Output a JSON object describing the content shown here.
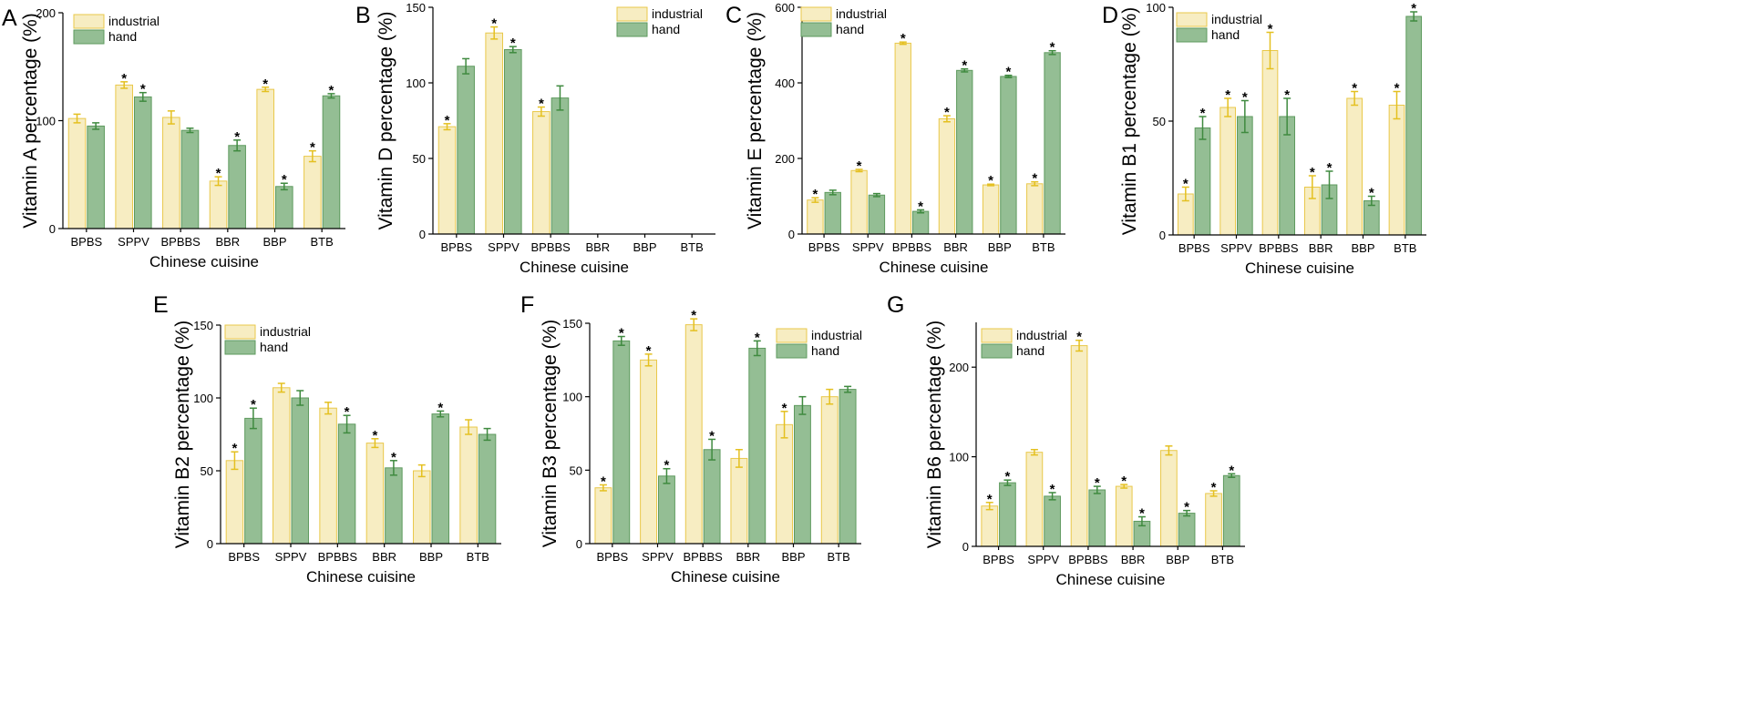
{
  "colors": {
    "industrial_fill": "#F7EDC2",
    "industrial_stroke": "#E9C84A",
    "industrial_err": "#E4C020",
    "hand_fill": "#94BE94",
    "hand_stroke": "#5E9A5E",
    "hand_err": "#3F8A3F"
  },
  "chart_data": [
    {
      "panel": "A",
      "type": "bar",
      "ylabel": "Vitamin A percentage (%)",
      "xlabel": "Chinese cuisine",
      "ylim": [
        0,
        200
      ],
      "yticks": [
        0,
        100,
        200
      ],
      "categories": [
        "BPBS",
        "SPPV",
        "BPBBS",
        "BBR",
        "BBP",
        "BTB"
      ],
      "legend": [
        "industrial",
        "hand"
      ],
      "legend_position": "top-left",
      "series": [
        {
          "name": "industrial",
          "values": [
            102,
            133,
            103,
            44,
            129,
            67
          ],
          "errors": [
            4,
            3,
            6,
            4,
            2,
            5
          ],
          "sig": [
            false,
            true,
            false,
            true,
            true,
            true
          ]
        },
        {
          "name": "hand",
          "values": [
            95,
            122,
            91,
            77,
            39,
            123
          ],
          "errors": [
            3,
            4,
            2,
            5,
            3,
            2
          ],
          "sig": [
            false,
            true,
            false,
            true,
            true,
            true
          ]
        }
      ]
    },
    {
      "panel": "B",
      "type": "bar",
      "ylabel": "Vitamin D percentage (%)",
      "xlabel": "Chinese cuisine",
      "ylim": [
        0,
        150
      ],
      "yticks": [
        0,
        50,
        100,
        150
      ],
      "categories": [
        "BPBS",
        "SPPV",
        "BPBBS",
        "BBR",
        "BBP",
        "BTB"
      ],
      "legend": [
        "industrial",
        "hand"
      ],
      "legend_position": "top-right",
      "series": [
        {
          "name": "industrial",
          "values": [
            71,
            133,
            81,
            null,
            null,
            null
          ],
          "errors": [
            2,
            4,
            3,
            null,
            null,
            null
          ],
          "sig": [
            true,
            true,
            true,
            false,
            false,
            false
          ]
        },
        {
          "name": "hand",
          "values": [
            111,
            122,
            90,
            null,
            null,
            null
          ],
          "errors": [
            5,
            2,
            8,
            null,
            null,
            null
          ],
          "sig": [
            false,
            true,
            false,
            false,
            false,
            false
          ]
        }
      ]
    },
    {
      "panel": "C",
      "type": "bar",
      "ylabel": "Vitamin E percentage (%)",
      "xlabel": "Chinese cuisine",
      "ylim": [
        0,
        600
      ],
      "yticks": [
        0,
        200,
        400,
        600
      ],
      "categories": [
        "BPBS",
        "SPPV",
        "BPBBS",
        "BBR",
        "BBP",
        "BTB"
      ],
      "legend": [
        "industrial",
        "hand"
      ],
      "legend_position": "top-left",
      "series": [
        {
          "name": "industrial",
          "values": [
            90,
            168,
            505,
            305,
            130,
            133
          ],
          "errors": [
            6,
            3,
            3,
            8,
            2,
            5
          ],
          "sig": [
            true,
            true,
            true,
            true,
            true,
            true
          ]
        },
        {
          "name": "hand",
          "values": [
            110,
            103,
            60,
            433,
            417,
            480
          ],
          "errors": [
            6,
            4,
            4,
            4,
            3,
            5
          ],
          "sig": [
            false,
            false,
            true,
            true,
            true,
            true
          ]
        }
      ]
    },
    {
      "panel": "D",
      "type": "bar",
      "ylabel": "Vitamin B1 percentage (%)",
      "xlabel": "Chinese cuisine",
      "ylim": [
        0,
        100
      ],
      "yticks": [
        0,
        50,
        100
      ],
      "categories": [
        "BPBS",
        "SPPV",
        "BPBBS",
        "BBR",
        "BBP",
        "BTB"
      ],
      "legend": [
        "industrial",
        "hand"
      ],
      "legend_position": "top-left",
      "series": [
        {
          "name": "industrial",
          "values": [
            18,
            56,
            81,
            21,
            60,
            57
          ],
          "errors": [
            3,
            4,
            8,
            5,
            3,
            6
          ],
          "sig": [
            true,
            true,
            true,
            true,
            true,
            true
          ]
        },
        {
          "name": "hand",
          "values": [
            47,
            52,
            52,
            22,
            15,
            96
          ],
          "errors": [
            5,
            7,
            8,
            6,
            2,
            2
          ],
          "sig": [
            true,
            true,
            true,
            true,
            true,
            true
          ]
        }
      ]
    },
    {
      "panel": "E",
      "type": "bar",
      "ylabel": "Vitamin B2 percentage (%)",
      "xlabel": "Chinese cuisine",
      "ylim": [
        0,
        150
      ],
      "yticks": [
        0,
        50,
        100,
        150
      ],
      "categories": [
        "BPBS",
        "SPPV",
        "BPBBS",
        "BBR",
        "BBP",
        "BTB"
      ],
      "legend": [
        "industrial",
        "hand"
      ],
      "legend_position": "top-left",
      "series": [
        {
          "name": "industrial",
          "values": [
            57,
            107,
            93,
            69,
            50,
            80
          ],
          "errors": [
            6,
            3,
            4,
            3,
            4,
            5
          ],
          "sig": [
            true,
            false,
            false,
            true,
            false,
            false
          ]
        },
        {
          "name": "hand",
          "values": [
            86,
            100,
            82,
            52,
            89,
            75
          ],
          "errors": [
            7,
            5,
            6,
            5,
            2,
            4
          ],
          "sig": [
            true,
            false,
            true,
            true,
            true,
            false
          ]
        }
      ]
    },
    {
      "panel": "F",
      "type": "bar",
      "ylabel": "Vitamin B3 percentage (%)",
      "xlabel": "Chinese cuisine",
      "ylim": [
        0,
        150
      ],
      "yticks": [
        0,
        50,
        100,
        150
      ],
      "categories": [
        "BPBS",
        "SPPV",
        "BPBBS",
        "BBR",
        "BBP",
        "BTB"
      ],
      "legend": [
        "industrial",
        "hand"
      ],
      "legend_position": "top-right",
      "series": [
        {
          "name": "industrial",
          "values": [
            38,
            125,
            149,
            58,
            81,
            100
          ],
          "errors": [
            2,
            4,
            4,
            6,
            9,
            5
          ],
          "sig": [
            true,
            true,
            true,
            false,
            true,
            false
          ]
        },
        {
          "name": "hand",
          "values": [
            138,
            46,
            64,
            133,
            94,
            105
          ],
          "errors": [
            3,
            5,
            7,
            5,
            6,
            2
          ],
          "sig": [
            true,
            true,
            true,
            true,
            false,
            false
          ]
        }
      ]
    },
    {
      "panel": "G",
      "type": "bar",
      "ylabel": "Vitamin B6 percentage (%)",
      "xlabel": "Chinese cuisine",
      "ylim": [
        0,
        250
      ],
      "yticks": [
        0,
        100,
        200
      ],
      "categories": [
        "BPBS",
        "SPPV",
        "BPBBS",
        "BBR",
        "BBP",
        "BTB"
      ],
      "legend": [
        "industrial",
        "hand"
      ],
      "legend_position": "top-left",
      "series": [
        {
          "name": "industrial",
          "values": [
            45,
            105,
            224,
            67,
            107,
            59
          ],
          "errors": [
            4,
            3,
            6,
            2,
            5,
            3
          ],
          "sig": [
            true,
            false,
            true,
            true,
            false,
            true
          ]
        },
        {
          "name": "hand",
          "values": [
            71,
            56,
            63,
            28,
            37,
            79
          ],
          "errors": [
            3,
            4,
            4,
            5,
            3,
            2
          ],
          "sig": [
            true,
            true,
            true,
            true,
            true,
            true
          ]
        }
      ]
    }
  ]
}
